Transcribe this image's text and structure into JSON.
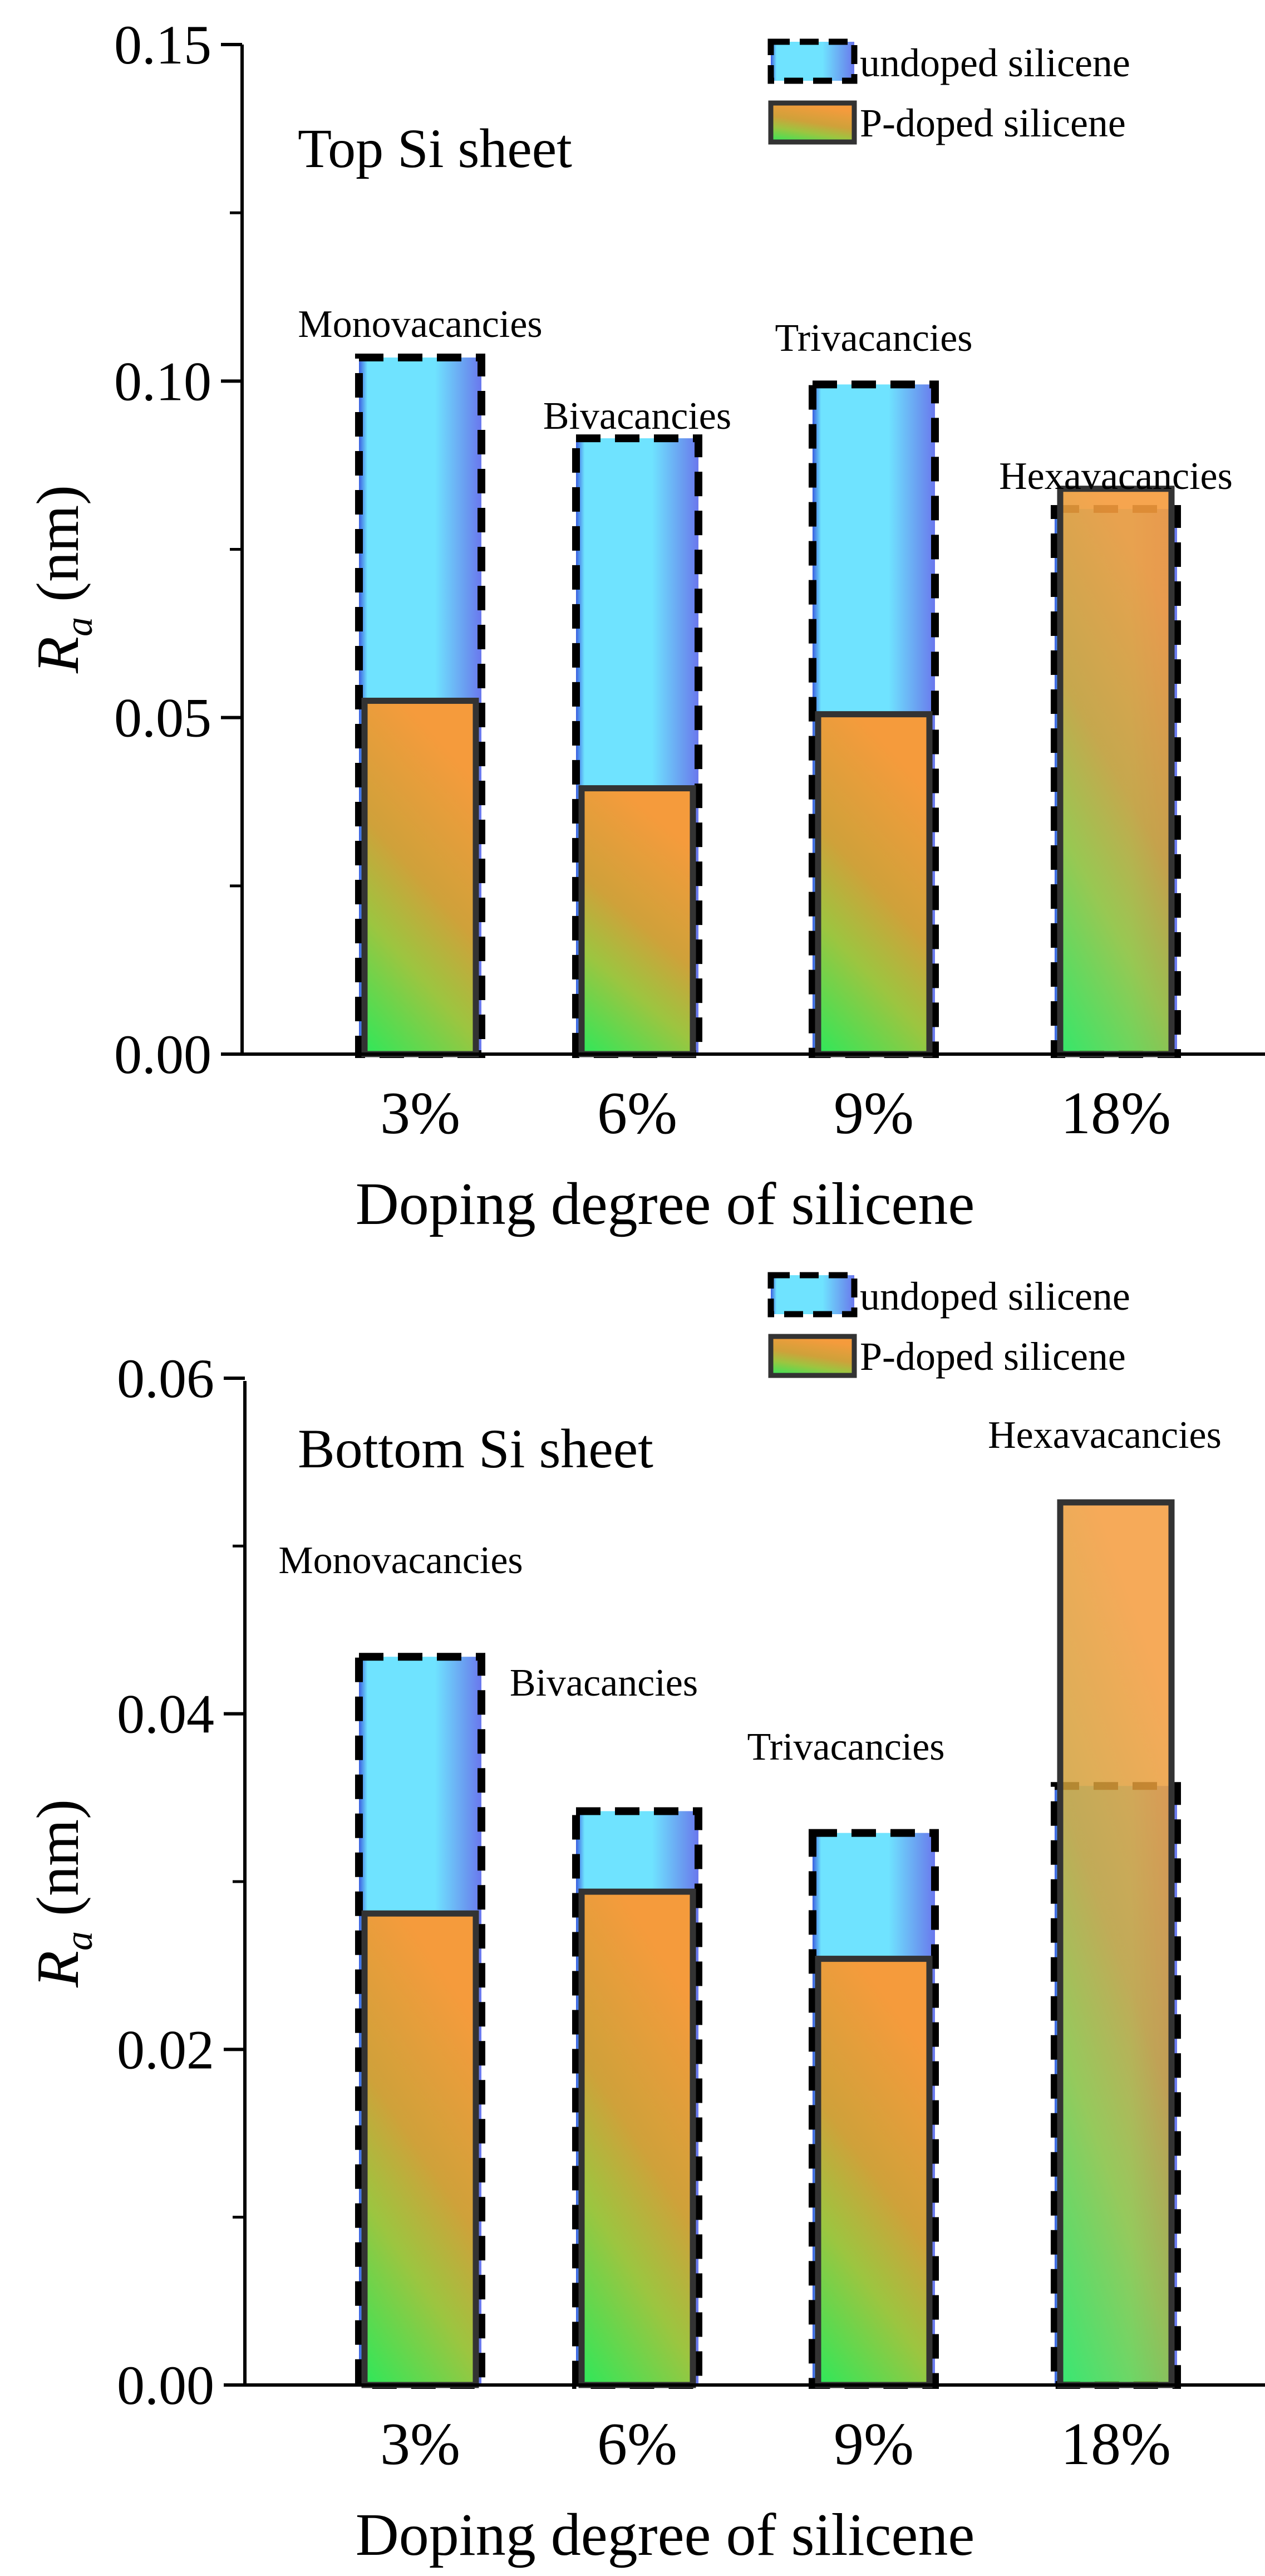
{
  "colors": {
    "undoped_top": "#6fe3ff",
    "undoped_left": "#3b5fe0",
    "undoped_right": "#6a78ee",
    "doped_top": "#f59b3c",
    "doped_mid": "#c7a23a",
    "doped_bottom": "#2ee85a",
    "doped_edge": "#333333",
    "axis": "#000000"
  },
  "chart_data": [
    {
      "type": "bar",
      "title": "Top Si sheet",
      "xlabel": "Doping degree of silicene",
      "ylabel_main": "R",
      "ylabel_sub": "a",
      "ylabel_unit": " (nm)",
      "categories": [
        "3%",
        "6%",
        "9%",
        "18%"
      ],
      "annotations": [
        "Monovacancies",
        "Bivacancies",
        "Trivacancies",
        "Hexavacancies"
      ],
      "ylim": [
        0,
        0.15
      ],
      "yticks": [
        0.0,
        0.05,
        0.1,
        0.15
      ],
      "ytick_labels": [
        "0.00",
        "0.05",
        "0.10",
        "0.15"
      ],
      "legend_position": "top-right",
      "series": [
        {
          "name": "undoped silicene",
          "style": "dashed",
          "values": [
            0.1035,
            0.0915,
            0.0995,
            0.081
          ]
        },
        {
          "name": "P-doped silicene",
          "style": "solid",
          "values": [
            0.0525,
            0.0395,
            0.0505,
            0.084
          ]
        }
      ]
    },
    {
      "type": "bar",
      "title": "Bottom Si sheet",
      "xlabel": "Doping degree of silicene",
      "ylabel_main": "R",
      "ylabel_sub": "a",
      "ylabel_unit": " (nm)",
      "categories": [
        "3%",
        "6%",
        "9%",
        "18%"
      ],
      "annotations": [
        "Monovacancies",
        "Bivacancies",
        "Trivacancies",
        "Hexavacancies"
      ],
      "ylim": [
        0,
        0.06
      ],
      "yticks": [
        0.0,
        0.02,
        0.04,
        0.06
      ],
      "ytick_labels": [
        "0.00",
        "0.02",
        "0.04",
        "0.06"
      ],
      "legend_position": "top-right",
      "series": [
        {
          "name": "undoped silicene",
          "style": "dashed",
          "values": [
            0.0434,
            0.0342,
            0.0329,
            0.0357
          ]
        },
        {
          "name": "P-doped silicene",
          "style": "solid",
          "values": [
            0.0281,
            0.0294,
            0.0254,
            0.0526
          ]
        }
      ]
    }
  ]
}
